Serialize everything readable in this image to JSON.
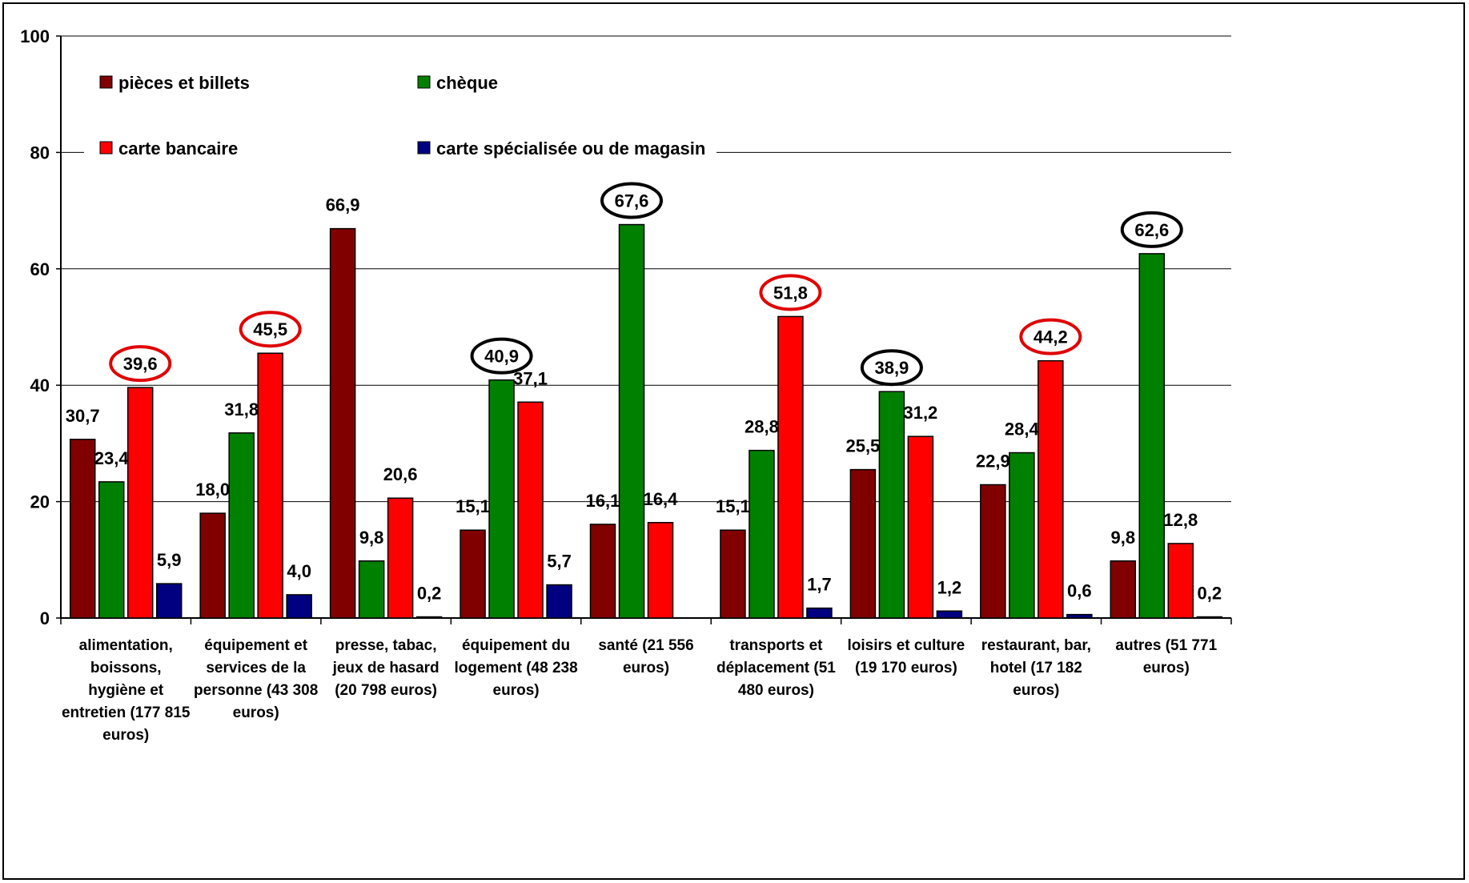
{
  "chart_data": {
    "type": "bar",
    "title": "",
    "xlabel": "",
    "ylabel": "",
    "ylim": [
      0,
      100
    ],
    "yticks": [
      0,
      20,
      40,
      60,
      80,
      100
    ],
    "grid": true,
    "legend_position": "top-left",
    "categories": [
      [
        "alimentation,",
        "boissons,",
        "hygiène et",
        "entretien (177 815",
        "euros)"
      ],
      [
        "équipement et",
        "services de la",
        "personne (43 308",
        "euros)"
      ],
      [
        "presse, tabac,",
        "jeux de hasard",
        "(20 798 euros)"
      ],
      [
        "équipement du",
        "logement (48 238",
        "euros)"
      ],
      [
        "santé (21 556",
        "euros)"
      ],
      [
        "transports et",
        "déplacement (51",
        "480 euros)"
      ],
      [
        "loisirs et culture",
        "(19 170 euros)"
      ],
      [
        "restaurant, bar,",
        "hotel (17 182",
        "euros)"
      ],
      [
        "autres (51 771",
        "euros)"
      ]
    ],
    "series": [
      {
        "name": "pièces et billets",
        "color": "#800000",
        "values": [
          30.7,
          18.0,
          66.9,
          15.1,
          16.1,
          15.1,
          25.5,
          22.9,
          9.8
        ],
        "labels": [
          "30,7",
          "18,0",
          "66,9",
          "15,1",
          "16,1",
          "15,1",
          "25,5",
          "22,9",
          "9,8"
        ]
      },
      {
        "name": "chèque",
        "color": "#008000",
        "values": [
          23.4,
          31.8,
          9.8,
          40.9,
          67.6,
          28.8,
          38.9,
          28.4,
          62.6
        ],
        "labels": [
          "23,4",
          "31,8",
          "9,8",
          "40,9",
          "67,6",
          "28,8",
          "38,9",
          "28,4",
          "62,6"
        ]
      },
      {
        "name": "carte bancaire",
        "color": "#ff0000",
        "values": [
          39.6,
          45.5,
          20.6,
          37.1,
          16.4,
          51.8,
          31.2,
          44.2,
          12.8
        ],
        "labels": [
          "39,6",
          "45,5",
          "20,6",
          "37,1",
          "16,4",
          "51,8",
          "31,2",
          "44,2",
          "12,8"
        ]
      },
      {
        "name": "carte spécialisée ou de magasin",
        "color": "#000080",
        "values": [
          5.9,
          4.0,
          0.2,
          5.7,
          null,
          1.7,
          1.2,
          0.6,
          0.2
        ],
        "labels": [
          "5,9",
          "4,0",
          "0,2",
          "5,7",
          "",
          "1,7",
          "1,2",
          "0,6",
          "0,2"
        ]
      }
    ],
    "highlights": [
      {
        "category": 0,
        "series": 2,
        "color": "#e00000"
      },
      {
        "category": 1,
        "series": 2,
        "color": "#e00000"
      },
      {
        "category": 3,
        "series": 1,
        "color": "#000000"
      },
      {
        "category": 4,
        "series": 1,
        "color": "#000000"
      },
      {
        "category": 5,
        "series": 2,
        "color": "#e00000"
      },
      {
        "category": 6,
        "series": 1,
        "color": "#000000"
      },
      {
        "category": 7,
        "series": 2,
        "color": "#e00000"
      },
      {
        "category": 8,
        "series": 1,
        "color": "#000000"
      }
    ]
  }
}
